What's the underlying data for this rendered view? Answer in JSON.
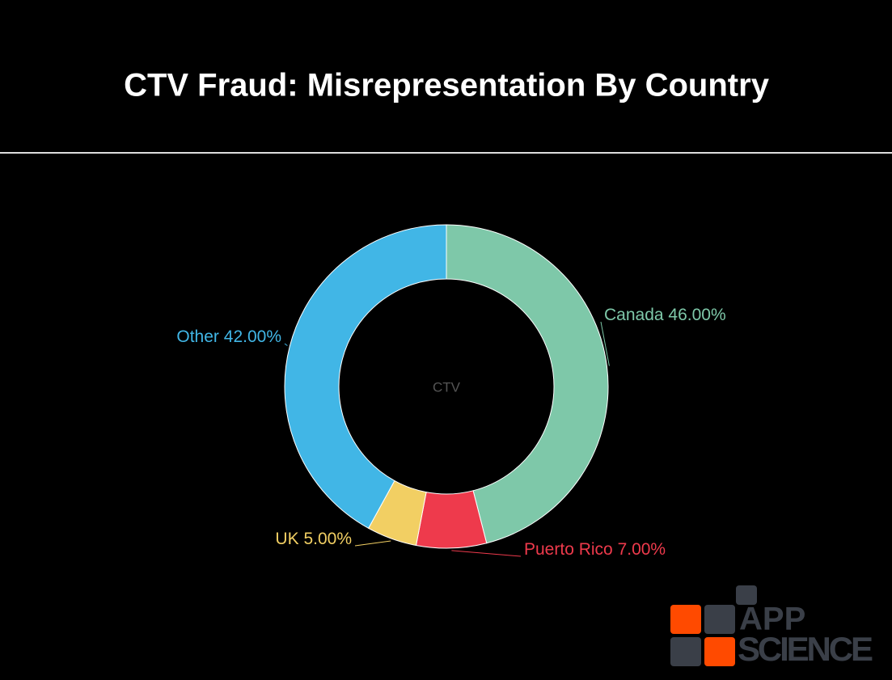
{
  "chart_data": {
    "type": "donut",
    "title": "CTV Fraud: Misrepresentation By Country",
    "center_label": "CTV",
    "categories": [
      "Canada",
      "Puerto Rico",
      "UK",
      "Other"
    ],
    "values": [
      46,
      7,
      5,
      42
    ],
    "value_labels": [
      "46.00%",
      "7.00%",
      "5.00%",
      "42.00%"
    ],
    "colors": [
      "#7ec8a9",
      "#ee3a4c",
      "#f2cf63",
      "#41b6e6"
    ]
  },
  "logo_text": [
    "APP",
    "SCIENCE"
  ]
}
